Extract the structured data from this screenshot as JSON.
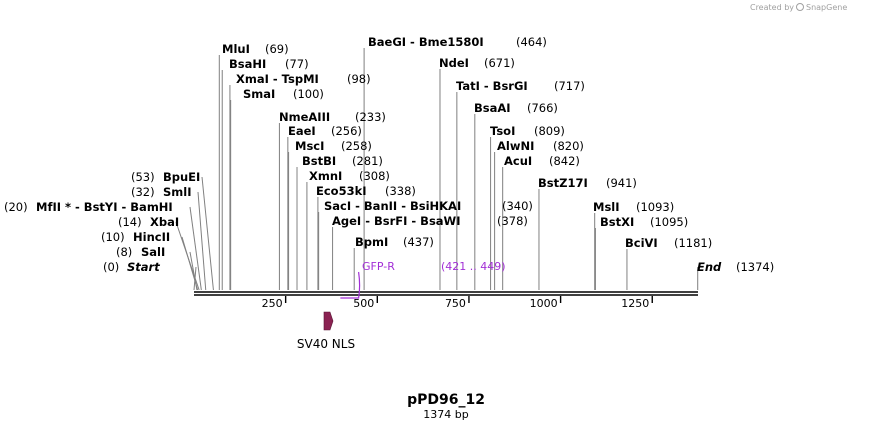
{
  "header": {
    "created_by": "Created by",
    "brand": "SnapGene"
  },
  "plasmid": {
    "name": "pPD96_12",
    "length_label": "1374 bp",
    "length": 1374
  },
  "ticks": [
    {
      "pos": 250,
      "label": "250"
    },
    {
      "pos": 500,
      "label": "500"
    },
    {
      "pos": 750,
      "label": "750"
    },
    {
      "pos": 1000,
      "label": "1000"
    },
    {
      "pos": 1250,
      "label": "1250"
    }
  ],
  "sites": [
    {
      "name": "Start",
      "num": "(0)"
    },
    {
      "name": "SalI",
      "num": "(8)"
    },
    {
      "name": "HincII",
      "num": "(10)"
    },
    {
      "name": "XbaI",
      "num": "(14)"
    },
    {
      "name": "MfII * - BstYI - BamHI",
      "num": "(20)"
    },
    {
      "name": "SmlI",
      "num": "(32)"
    },
    {
      "name": "BpuEI",
      "num": "(53)"
    },
    {
      "name": "MluI",
      "num": "(69)"
    },
    {
      "name": "BsaHI",
      "num": "(77)"
    },
    {
      "name": "XmaI - TspMI",
      "num": "(98)"
    },
    {
      "name": "SmaI",
      "num": "(100)"
    },
    {
      "name": "NmeAIII",
      "num": "(233)"
    },
    {
      "name": "EaeI",
      "num": "(256)"
    },
    {
      "name": "MscI",
      "num": "(258)"
    },
    {
      "name": "BstBI",
      "num": "(281)"
    },
    {
      "name": "XmnI",
      "num": "(308)"
    },
    {
      "name": "Eco53kI",
      "num": "(338)"
    },
    {
      "name": "SacI - BanII - BsiHKAI",
      "num": "(340)"
    },
    {
      "name": "AgeI - BsrFI - BsaWI",
      "num": "(378)"
    },
    {
      "name": "BpmI",
      "num": "(437)"
    },
    {
      "name": "BaeGI - Bme1580I",
      "num": "(464)"
    },
    {
      "name": "NdeI",
      "num": "(671)"
    },
    {
      "name": "TatI - BsrGI",
      "num": "(717)"
    },
    {
      "name": "BsaAI",
      "num": "(766)"
    },
    {
      "name": "TsoI",
      "num": "(809)"
    },
    {
      "name": "AlwNI",
      "num": "(820)"
    },
    {
      "name": "AcuI",
      "num": "(842)"
    },
    {
      "name": "BstZ17I",
      "num": "(941)"
    },
    {
      "name": "MslI",
      "num": "(1093)"
    },
    {
      "name": "BstXI",
      "num": "(1095)"
    },
    {
      "name": "BciVI",
      "num": "(1181)"
    },
    {
      "name": "End",
      "num": "(1374)"
    }
  ],
  "primer": {
    "name": "GFP-R",
    "range": "(421 .. 449)",
    "color": "#a22fd6"
  },
  "feature": {
    "name": "SV40 NLS",
    "color": "#8b2252"
  }
}
